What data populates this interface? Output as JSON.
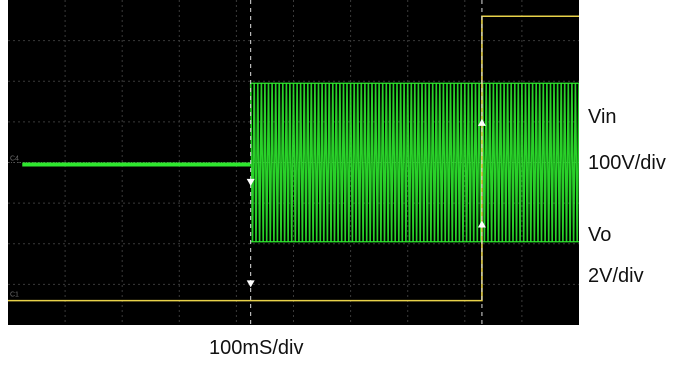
{
  "chart_data": {
    "type": "line",
    "title": "",
    "grid": true,
    "grid_divisions": {
      "x": 10,
      "y": 8
    },
    "time_scale": "100mS/div",
    "x_range_div": [
      0,
      10
    ],
    "channels": [
      {
        "id": "C4",
        "name": "Vin",
        "scale": "100V/div",
        "color": "#2ee82e",
        "baseline_div": -0.05,
        "burst_start_div": 4.25,
        "envelope_div": [
          -1.95,
          1.95
        ],
        "cycles_per_div": 16
      },
      {
        "id": "C1",
        "name": "Vo",
        "scale": "2V/div",
        "color": "#e8d24a",
        "baseline_div": -3.4,
        "step_time_div": 8.3,
        "step_high_div": 3.6
      }
    ],
    "markers": [
      {
        "id": "cursor-left",
        "x_div": 4.25,
        "arrow": "down"
      },
      {
        "id": "cursor-right",
        "x_div": 8.3,
        "arrow": "up"
      }
    ]
  },
  "labels": {
    "vin_name": "Vin",
    "vin_scale": "100V/div",
    "vo_name": "Vo",
    "vo_scale": "2V/div",
    "time_scale": "100mS/div",
    "c4_tag": "C4",
    "c1_tag": "C1"
  }
}
